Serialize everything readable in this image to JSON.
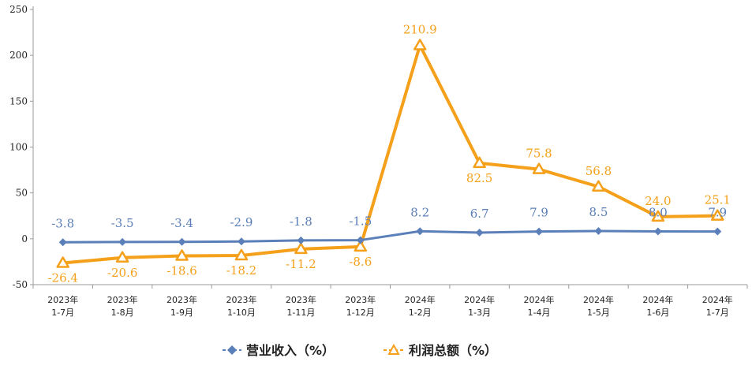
{
  "chart_data": {
    "type": "line",
    "categories": [
      [
        "2023年",
        "1-7月"
      ],
      [
        "2023年",
        "1-8月"
      ],
      [
        "2023年",
        "1-9月"
      ],
      [
        "2023年",
        "1-10月"
      ],
      [
        "2023年",
        "1-11月"
      ],
      [
        "2023年",
        "1-12月"
      ],
      [
        "2024年",
        "1-2月"
      ],
      [
        "2024年",
        "1-3月"
      ],
      [
        "2024年",
        "1-4月"
      ],
      [
        "2024年",
        "1-5月"
      ],
      [
        "2024年",
        "1-6月"
      ],
      [
        "2024年",
        "1-7月"
      ]
    ],
    "ylim": [
      -50,
      250
    ],
    "yticks": [
      -50,
      0,
      50,
      100,
      150,
      200,
      250
    ],
    "grid": false,
    "legend_position": "bottom",
    "series": [
      {
        "name": "营业收入（%）",
        "color": "#5b7fb8",
        "marker": "diamond",
        "values": [
          -3.8,
          -3.5,
          -3.4,
          -2.9,
          -1.8,
          -1.5,
          8.2,
          6.7,
          7.9,
          8.5,
          8.0,
          7.9
        ],
        "labels": [
          "-3.8",
          "-3.5",
          "-3.4",
          "-2.9",
          "-1.8",
          "-1.5",
          "8.2",
          "6.7",
          "7.9",
          "8.5",
          "8.0",
          "7.9"
        ]
      },
      {
        "name": "利润总额（%）",
        "color": "#f5a01b",
        "marker": "triangle",
        "values": [
          -26.4,
          -20.6,
          -18.6,
          -18.2,
          -11.2,
          -8.6,
          210.9,
          82.5,
          75.8,
          56.8,
          24.0,
          25.1
        ],
        "labels": [
          "-26.4",
          "-20.6",
          "-18.6",
          "-18.2",
          "-11.2",
          "-8.6",
          "210.9",
          "82.5",
          "75.8",
          "56.8",
          "24.0",
          "25.1"
        ]
      }
    ]
  }
}
